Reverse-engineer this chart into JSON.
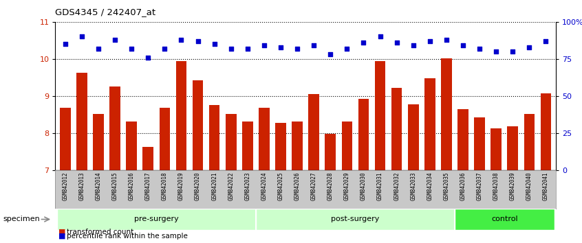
{
  "title": "GDS4345 / 242407_at",
  "samples": [
    "GSM842012",
    "GSM842013",
    "GSM842014",
    "GSM842015",
    "GSM842016",
    "GSM842017",
    "GSM842018",
    "GSM842019",
    "GSM842020",
    "GSM842021",
    "GSM842022",
    "GSM842023",
    "GSM842024",
    "GSM842025",
    "GSM842026",
    "GSM842027",
    "GSM842028",
    "GSM842029",
    "GSM842030",
    "GSM842031",
    "GSM842032",
    "GSM842033",
    "GSM842034",
    "GSM842035",
    "GSM842036",
    "GSM842037",
    "GSM842038",
    "GSM842039",
    "GSM842040",
    "GSM842041"
  ],
  "bar_values": [
    8.68,
    9.62,
    8.52,
    9.25,
    8.32,
    7.62,
    8.68,
    9.95,
    9.43,
    8.75,
    8.52,
    8.32,
    8.68,
    8.28,
    8.32,
    9.05,
    7.98,
    8.32,
    8.92,
    9.95,
    9.22,
    8.78,
    9.48,
    10.02,
    8.65,
    8.42,
    8.12,
    8.18,
    8.52,
    9.08
  ],
  "percentile_values": [
    85,
    90,
    82,
    88,
    82,
    76,
    82,
    88,
    87,
    85,
    82,
    82,
    84,
    83,
    82,
    84,
    78,
    82,
    86,
    90,
    86,
    84,
    87,
    88,
    84,
    82,
    80,
    80,
    83,
    87
  ],
  "bar_color": "#cc2200",
  "dot_color": "#0000cc",
  "ylim_left": [
    7,
    11
  ],
  "ylim_right": [
    0,
    100
  ],
  "yticks_left": [
    7,
    8,
    9,
    10,
    11
  ],
  "yticks_right": [
    0,
    25,
    50,
    75,
    100
  ],
  "ytick_labels_right": [
    "0",
    "25",
    "50",
    "75",
    "100%"
  ],
  "groups": [
    {
      "label": "pre-surgery",
      "start": 0,
      "end": 12
    },
    {
      "label": "post-surgery",
      "start": 12,
      "end": 24
    },
    {
      "label": "control",
      "start": 24,
      "end": 30
    }
  ],
  "group_colors": [
    "#ccffcc",
    "#ccffcc",
    "#44ee44"
  ],
  "group_dividers": [
    12,
    24
  ],
  "specimen_label": "specimen",
  "legend_bar_label": "transformed count",
  "legend_dot_label": "percentile rank within the sample",
  "tick_label_area_color": "#c8c8c8"
}
